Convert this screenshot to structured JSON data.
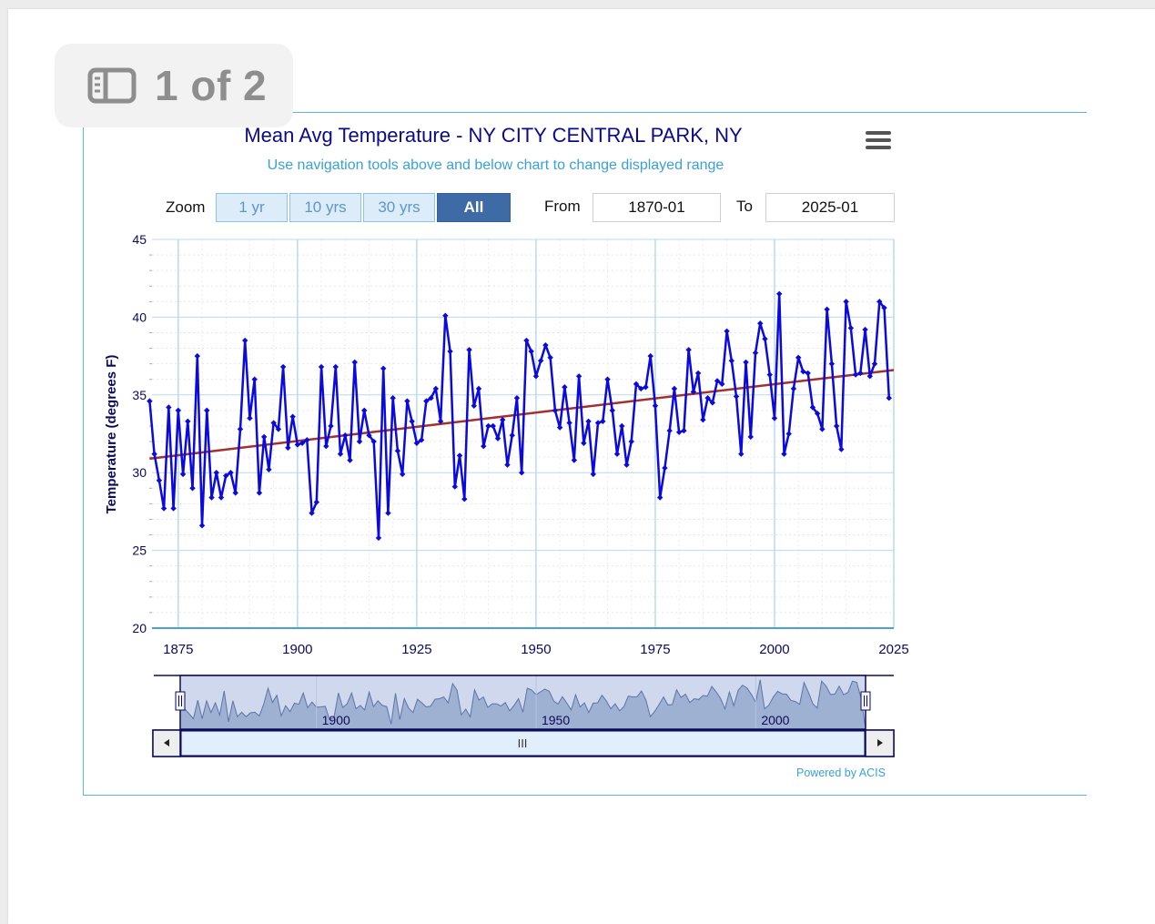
{
  "pager": {
    "label": "1 of 2",
    "icon": "sidebar-panel-icon"
  },
  "menu": {
    "icon": "hamburger-menu-icon"
  },
  "controls": {
    "zoom_label": "Zoom",
    "zoom_buttons": [
      "1 yr",
      "10 yrs",
      "30 yrs",
      "All"
    ],
    "active_zoom": "All",
    "from_label": "From",
    "from_value": "1870-01",
    "to_label": "To",
    "to_value": "2025-01"
  },
  "navigator": {
    "labels": [
      "1900",
      "1950",
      "2000"
    ],
    "scrollbar_grip": "III"
  },
  "credit": "Powered by ACIS",
  "colors": {
    "series": "#0a0ae0",
    "trend": "#a3302a",
    "navigator_fill": "#9fb1d3",
    "accent": "#3e6aa6",
    "frame": "#5fb6d9"
  },
  "chart_data": {
    "type": "line",
    "title": "Mean Avg Temperature  - NY CITY CENTRAL PARK, NY",
    "subtitle": "Use navigation tools above and below chart to change displayed range",
    "ylabel": "Temperature (degrees F)",
    "xlabel": "",
    "ylim": [
      20,
      45
    ],
    "xlim": [
      1869.5,
      2025
    ],
    "yticks": [
      "20",
      "25",
      "30",
      "35",
      "40",
      "45"
    ],
    "xticks": [
      "1875",
      "1900",
      "1925",
      "1950",
      "1975",
      "2000",
      "2025"
    ],
    "grid": true,
    "legend": "none",
    "series": [
      {
        "start_year": 1869,
        "values": [
          34.6,
          31.2,
          29.5,
          27.7,
          34.2,
          27.7,
          34.0,
          29.9,
          33.3,
          29.0,
          37.5,
          26.6,
          34.0,
          28.4,
          30.0,
          28.4,
          29.8,
          30.0,
          28.7,
          32.8,
          38.5,
          33.5,
          36.0,
          28.7,
          32.3,
          30.2,
          33.2,
          32.8,
          36.8,
          31.6,
          33.6,
          31.8,
          31.9,
          32.1,
          27.4,
          28.1,
          36.8,
          31.7,
          33.0,
          36.8,
          31.2,
          32.4,
          30.8,
          37.1,
          32.0,
          34.0,
          32.4,
          32.0,
          25.8,
          36.7,
          27.4,
          34.8,
          31.4,
          29.9,
          34.6,
          33.3,
          31.9,
          32.1,
          34.6,
          34.8,
          35.4,
          33.3,
          40.1,
          37.8,
          29.1,
          31.1,
          28.3,
          37.9,
          34.3,
          35.4,
          31.7,
          33.0,
          33.0,
          32.2,
          33.4,
          30.5,
          32.4,
          34.8,
          30.0,
          38.5,
          37.8,
          36.2,
          37.2,
          38.2,
          37.4,
          34.0,
          32.9,
          35.5,
          33.2,
          30.8,
          36.2,
          31.9,
          33.3,
          29.9,
          33.2,
          33.3,
          36.0,
          34.0,
          31.2,
          33.0,
          30.5,
          32.0,
          35.7,
          35.4,
          35.5,
          37.5,
          34.3,
          28.4,
          30.3,
          32.7,
          35.4,
          32.6,
          32.7,
          37.9,
          35.2,
          36.4,
          33.4,
          34.8,
          34.5,
          35.9,
          35.7,
          39.1,
          37.2,
          34.9,
          31.2,
          37.1,
          32.3,
          37.7,
          39.6,
          38.6,
          36.3,
          33.5,
          41.5,
          31.2,
          32.5,
          35.4,
          37.4,
          36.5,
          36.4,
          34.2,
          33.8,
          32.8,
          40.5,
          37.0,
          33.0,
          31.5,
          41.0,
          39.3,
          36.3,
          36.4,
          39.2,
          36.2,
          37.0,
          41.0,
          40.6,
          34.8
        ]
      },
      {
        "name_shown": "",
        "type": "trend",
        "x": [
          1869,
          2025
        ],
        "y": [
          30.9,
          36.6
        ]
      }
    ]
  }
}
